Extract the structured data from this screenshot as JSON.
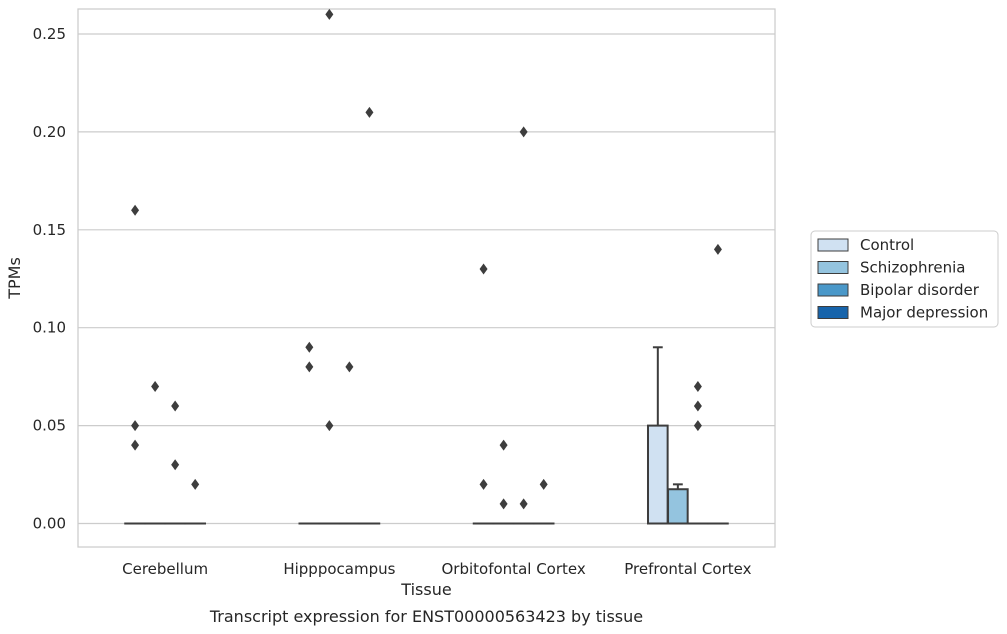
{
  "chart_data": {
    "type": "box",
    "xlabel": "Tissue",
    "ylabel": "TPMs",
    "caption": "Transcript expression for ENST00000563423 by tissue",
    "ylim": [
      -0.012,
      0.274
    ],
    "yticks": [
      0.0,
      0.05,
      0.1,
      0.15,
      0.2,
      0.25
    ],
    "ytick_labels": [
      "0.00",
      "0.05",
      "0.10",
      "0.15",
      "0.20",
      "0.25"
    ],
    "grid": true,
    "legend_position": "right",
    "categories": [
      "Cerebellum",
      "Hipppocampus",
      "Orbitofontal Cortex",
      "Prefrontal Cortex"
    ],
    "series": [
      {
        "name": "Control",
        "color": "#d0e1f2",
        "boxes": [
          {
            "q1": 0,
            "median": 0,
            "q3": 0,
            "whisker_low": 0,
            "whisker_high": 0,
            "outliers": [
              0.05,
              0.04,
              0.16
            ]
          },
          {
            "q1": 0,
            "median": 0,
            "q3": 0,
            "whisker_low": 0,
            "whisker_high": 0,
            "outliers": [
              0.09,
              0.08
            ]
          },
          {
            "q1": 0,
            "median": 0,
            "q3": 0,
            "whisker_low": 0,
            "whisker_high": 0,
            "outliers": [
              0.13,
              0.02
            ]
          },
          {
            "q1": 0,
            "median": 0,
            "q3": 0.05,
            "whisker_low": 0,
            "whisker_high": 0.09,
            "outliers": []
          }
        ]
      },
      {
        "name": "Schizophrenia",
        "color": "#94c4df",
        "boxes": [
          {
            "q1": 0,
            "median": 0,
            "q3": 0,
            "whisker_low": 0,
            "whisker_high": 0,
            "outliers": [
              0.07
            ]
          },
          {
            "q1": 0,
            "median": 0,
            "q3": 0,
            "whisker_low": 0,
            "whisker_high": 0,
            "outliers": [
              0.26,
              0.05
            ]
          },
          {
            "q1": 0,
            "median": 0,
            "q3": 0,
            "whisker_low": 0,
            "whisker_high": 0,
            "outliers": [
              0.04,
              0.01
            ]
          },
          {
            "q1": 0,
            "median": 0,
            "q3": 0.0175,
            "whisker_low": 0,
            "whisker_high": 0.02,
            "outliers": []
          }
        ]
      },
      {
        "name": "Bipolar disorder",
        "color": "#4a98c9",
        "boxes": [
          {
            "q1": 0,
            "median": 0,
            "q3": 0,
            "whisker_low": 0,
            "whisker_high": 0,
            "outliers": [
              0.06,
              0.03
            ]
          },
          {
            "q1": 0,
            "median": 0,
            "q3": 0,
            "whisker_low": 0,
            "whisker_high": 0,
            "outliers": [
              0.08
            ]
          },
          {
            "q1": 0,
            "median": 0,
            "q3": 0,
            "whisker_low": 0,
            "whisker_high": 0,
            "outliers": [
              0.2,
              0.01
            ]
          },
          {
            "q1": 0,
            "median": 0,
            "q3": 0,
            "whisker_low": 0,
            "whisker_high": 0,
            "outliers": [
              0.07,
              0.06,
              0.05
            ]
          }
        ]
      },
      {
        "name": "Major depression",
        "color": "#1764ab",
        "boxes": [
          {
            "q1": 0,
            "median": 0,
            "q3": 0,
            "whisker_low": 0,
            "whisker_high": 0,
            "outliers": [
              0.02
            ]
          },
          {
            "q1": 0,
            "median": 0,
            "q3": 0,
            "whisker_low": 0,
            "whisker_high": 0,
            "outliers": [
              0.21
            ]
          },
          {
            "q1": 0,
            "median": 0,
            "q3": 0,
            "whisker_low": 0,
            "whisker_high": 0,
            "outliers": [
              0.02
            ]
          },
          {
            "q1": 0,
            "median": 0,
            "q3": 0,
            "whisker_low": 0,
            "whisker_high": 0,
            "outliers": [
              0.14
            ]
          }
        ]
      }
    ]
  }
}
